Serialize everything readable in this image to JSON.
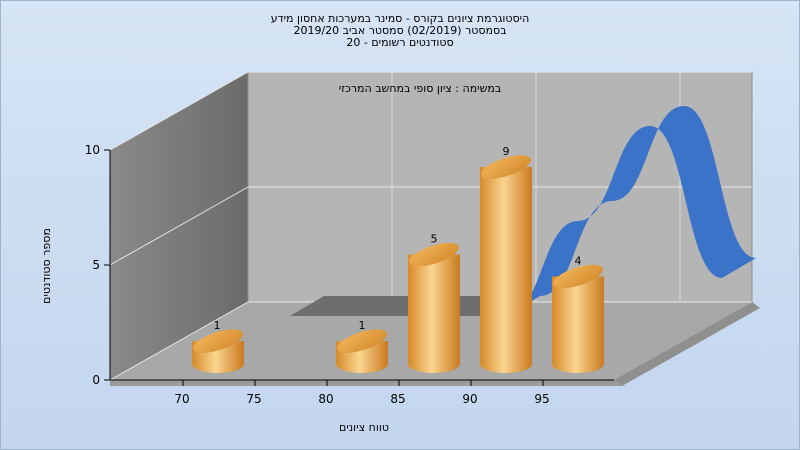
{
  "chart_data": {
    "type": "bar",
    "title_lines": [
      "היסטוגרמת ציונים בקורס - סמינר במערכות אחסון מידע",
      "בסמסטר (02/2019) סמסטר אביב 2019/20",
      "סטודנטים רשומים - 20"
    ],
    "subtitle": "במשימה : ציון סופי במחשב המרכזי",
    "xlabel": "טווח ציונים",
    "ylabel": "מספר סטודנטים",
    "x_ticks": [
      "70",
      "75",
      "80",
      "85",
      "90",
      "95"
    ],
    "y_ticks": [
      "0",
      "5",
      "10"
    ],
    "ylim": [
      0,
      10
    ],
    "categories": [
      "70",
      "75",
      "80",
      "85",
      "90",
      "95"
    ],
    "bars": {
      "name": "",
      "values": [
        1,
        0,
        1,
        5,
        9,
        4
      ],
      "labels": [
        "1",
        "",
        "1",
        "5",
        "9",
        "4"
      ]
    },
    "back_series": {
      "name": "",
      "values": [
        0,
        0,
        0,
        0,
        5,
        10,
        2
      ]
    },
    "colors": {
      "bar": "#e6a84a",
      "bar_light": "#fbd58f",
      "ribbon": "#3a73c8",
      "ribbon_flat": "#6e6e6e",
      "back_wall": "#b3b3b3",
      "side_wall": "#7f7f7f",
      "floor": "#a9a9a9"
    },
    "grid": true
  }
}
